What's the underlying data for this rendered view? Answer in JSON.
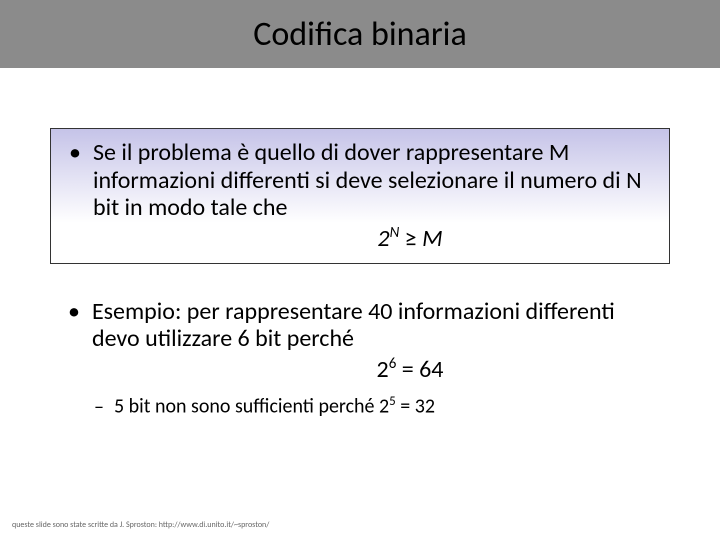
{
  "title": "Codifica binaria",
  "bullet1": {
    "text": "Se il problema è quello di dover rappresentare M informazioni differenti si deve selezionare il numero di N bit in modo tale che",
    "formula_base": "2",
    "formula_exp": "N",
    "formula_op": "≥",
    "formula_rhs": "M"
  },
  "bullet2": {
    "text": "Esempio: per rappresentare 40 informazioni differenti devo utilizzare 6 bit perché",
    "formula_base": "2",
    "formula_exp": "6",
    "formula_eq": " = 64"
  },
  "sub": {
    "pre": "5 bit non sono sufficienti perché 2",
    "exp": "5",
    "post": " = 32"
  },
  "footer": "queste slide sono state scritte da J. Sproston: http://www.di.unito.it/~sproston/",
  "colors": {
    "titlebar": "#8b8b8b",
    "gradient_top": "#c5c3e8",
    "gradient_bottom": "#ffffff"
  }
}
